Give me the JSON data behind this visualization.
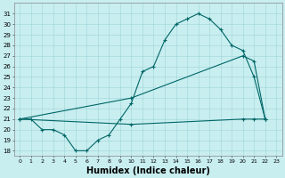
{
  "xlabel": "Humidex (Indice chaleur)",
  "bg_color": "#c8eef0",
  "line_color": "#006666",
  "grid_color": "#a0d4d8",
  "ylim": [
    17.5,
    32.0
  ],
  "xlim": [
    -0.5,
    23.5
  ],
  "yticks": [
    18,
    19,
    20,
    21,
    22,
    23,
    24,
    25,
    26,
    27,
    28,
    29,
    30,
    31
  ],
  "xticks": [
    0,
    1,
    2,
    3,
    4,
    5,
    6,
    7,
    8,
    9,
    10,
    11,
    12,
    13,
    14,
    15,
    16,
    17,
    18,
    19,
    20,
    21,
    22,
    23
  ],
  "curve1_x": [
    0,
    1,
    2,
    3,
    4,
    5,
    6,
    7,
    8,
    9,
    10,
    11,
    12,
    13,
    14,
    15,
    16,
    17,
    18,
    19,
    20,
    21,
    22
  ],
  "curve1_y": [
    21,
    21,
    20,
    20,
    19.5,
    18,
    18,
    19,
    19.5,
    21,
    22.5,
    25.5,
    26,
    28.5,
    30,
    30.5,
    31,
    30.5,
    29.5,
    28,
    27.5,
    25,
    21
  ],
  "curve2_x": [
    0,
    10,
    20,
    21,
    22
  ],
  "curve2_y": [
    21,
    23,
    27,
    26.5,
    21
  ],
  "curve3_x": [
    0,
    10,
    20,
    21,
    22
  ],
  "curve3_y": [
    21,
    20.5,
    21,
    21,
    21
  ],
  "xlabel_fontsize": 7,
  "tick_fontsize": 5,
  "linewidth": 0.8,
  "marker_size": 3
}
